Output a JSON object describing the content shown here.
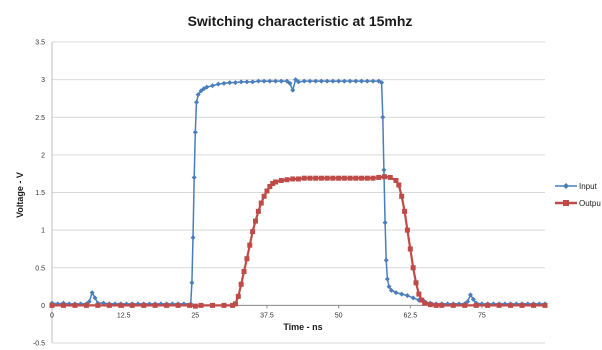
{
  "chart_data": {
    "type": "line",
    "title": "Switching characteristic at 15mhz",
    "xlabel": "Time  - ns",
    "ylabel": "Voltage - V",
    "xlim": [
      0,
      86
    ],
    "ylim": [
      -0.5,
      3.5
    ],
    "x_ticks": [
      "0",
      "12.5",
      "25",
      "37.5",
      "50",
      "62.5",
      "75"
    ],
    "x_tick_values": [
      0,
      12.5,
      25,
      37.5,
      50,
      62.5,
      75
    ],
    "y_ticks": [
      "3.5",
      "3",
      "2.5",
      "2",
      "1.5",
      "1",
      "0.5",
      "0",
      "-0.5"
    ],
    "y_tick_values": [
      3.5,
      3,
      2.5,
      2,
      1.5,
      1,
      0.5,
      0,
      -0.5
    ],
    "grid": true,
    "legend_position": "right",
    "series": [
      {
        "name": "Input",
        "color": "#4a7ebb",
        "marker": "diamond",
        "points": [
          [
            0,
            0.03
          ],
          [
            1,
            0.02
          ],
          [
            2,
            0.03
          ],
          [
            3,
            0.02
          ],
          [
            4,
            0.02
          ],
          [
            5,
            0.02
          ],
          [
            6,
            0.02
          ],
          [
            6.5,
            0.05
          ],
          [
            7,
            0.17
          ],
          [
            7.5,
            0.1
          ],
          [
            8,
            0.03
          ],
          [
            9,
            0.03
          ],
          [
            10,
            0.02
          ],
          [
            11,
            0.02
          ],
          [
            12,
            0.02
          ],
          [
            13,
            0.02
          ],
          [
            14,
            0.02
          ],
          [
            15,
            0.02
          ],
          [
            16,
            0.02
          ],
          [
            17,
            0.02
          ],
          [
            18,
            0.02
          ],
          [
            19,
            0.02
          ],
          [
            20,
            0.02
          ],
          [
            21,
            0.02
          ],
          [
            22,
            0.02
          ],
          [
            23,
            0.02
          ],
          [
            24.2,
            0.02
          ],
          [
            24.4,
            0.3
          ],
          [
            24.6,
            0.9
          ],
          [
            24.8,
            1.7
          ],
          [
            25,
            2.3
          ],
          [
            25.2,
            2.7
          ],
          [
            25.5,
            2.8
          ],
          [
            26,
            2.85
          ],
          [
            26.5,
            2.88
          ],
          [
            27,
            2.9
          ],
          [
            28,
            2.92
          ],
          [
            29,
            2.94
          ],
          [
            30,
            2.95
          ],
          [
            31,
            2.96
          ],
          [
            32,
            2.96
          ],
          [
            33,
            2.97
          ],
          [
            34,
            2.97
          ],
          [
            35,
            2.97
          ],
          [
            36,
            2.98
          ],
          [
            37,
            2.98
          ],
          [
            38,
            2.98
          ],
          [
            39,
            2.98
          ],
          [
            40,
            2.98
          ],
          [
            41,
            2.98
          ],
          [
            41.5,
            2.95
          ],
          [
            42,
            2.86
          ],
          [
            42.5,
            3.0
          ],
          [
            43,
            2.97
          ],
          [
            44,
            2.98
          ],
          [
            45,
            2.98
          ],
          [
            46,
            2.98
          ],
          [
            47,
            2.98
          ],
          [
            48,
            2.98
          ],
          [
            49,
            2.98
          ],
          [
            50,
            2.98
          ],
          [
            51,
            2.98
          ],
          [
            52,
            2.98
          ],
          [
            53,
            2.98
          ],
          [
            54,
            2.98
          ],
          [
            55,
            2.98
          ],
          [
            56,
            2.98
          ],
          [
            57,
            2.98
          ],
          [
            57.5,
            2.96
          ],
          [
            57.7,
            2.5
          ],
          [
            57.9,
            1.8
          ],
          [
            58.1,
            1.1
          ],
          [
            58.3,
            0.6
          ],
          [
            58.5,
            0.35
          ],
          [
            58.8,
            0.25
          ],
          [
            59.2,
            0.2
          ],
          [
            60,
            0.17
          ],
          [
            61,
            0.15
          ],
          [
            62,
            0.13
          ],
          [
            63,
            0.1
          ],
          [
            64,
            0.07
          ],
          [
            65,
            0.05
          ],
          [
            66,
            0.03
          ],
          [
            67,
            0.02
          ],
          [
            68,
            0.02
          ],
          [
            69,
            0.02
          ],
          [
            70,
            0.02
          ],
          [
            71,
            0.02
          ],
          [
            72,
            0.02
          ],
          [
            72.5,
            0.05
          ],
          [
            73,
            0.14
          ],
          [
            73.5,
            0.08
          ],
          [
            74,
            0.03
          ],
          [
            75,
            0.02
          ],
          [
            76,
            0.02
          ],
          [
            77,
            0.02
          ],
          [
            78,
            0.02
          ],
          [
            79,
            0.02
          ],
          [
            80,
            0.02
          ],
          [
            81,
            0.02
          ],
          [
            82,
            0.02
          ],
          [
            83,
            0.02
          ],
          [
            84,
            0.02
          ],
          [
            85,
            0.02
          ],
          [
            86,
            0.02
          ]
        ]
      },
      {
        "name": "Outpu",
        "color": "#be4b48",
        "marker": "square",
        "points": [
          [
            0,
            0.0
          ],
          [
            2,
            0.0
          ],
          [
            4,
            0.0
          ],
          [
            6,
            0.0
          ],
          [
            8,
            0.0
          ],
          [
            10,
            0.0
          ],
          [
            12,
            0.0
          ],
          [
            14,
            0.0
          ],
          [
            16,
            0.0
          ],
          [
            18,
            0.0
          ],
          [
            20,
            0.0
          ],
          [
            22,
            0.0
          ],
          [
            24,
            0.0
          ],
          [
            25,
            -0.01
          ],
          [
            26,
            0.0
          ],
          [
            28,
            0.0
          ],
          [
            30,
            0.0
          ],
          [
            31.5,
            0.0
          ],
          [
            32,
            0.02
          ],
          [
            32.5,
            0.12
          ],
          [
            33,
            0.28
          ],
          [
            33.5,
            0.45
          ],
          [
            34,
            0.62
          ],
          [
            34.5,
            0.8
          ],
          [
            35,
            0.98
          ],
          [
            35.5,
            1.12
          ],
          [
            36,
            1.25
          ],
          [
            36.5,
            1.36
          ],
          [
            37,
            1.45
          ],
          [
            37.5,
            1.52
          ],
          [
            38,
            1.58
          ],
          [
            38.5,
            1.62
          ],
          [
            39,
            1.64
          ],
          [
            40,
            1.66
          ],
          [
            41,
            1.67
          ],
          [
            42,
            1.68
          ],
          [
            43,
            1.68
          ],
          [
            44,
            1.69
          ],
          [
            45,
            1.69
          ],
          [
            46,
            1.69
          ],
          [
            47,
            1.69
          ],
          [
            48,
            1.69
          ],
          [
            49,
            1.69
          ],
          [
            50,
            1.69
          ],
          [
            51,
            1.69
          ],
          [
            52,
            1.69
          ],
          [
            53,
            1.69
          ],
          [
            54,
            1.69
          ],
          [
            55,
            1.69
          ],
          [
            56,
            1.69
          ],
          [
            57,
            1.7
          ],
          [
            58,
            1.71
          ],
          [
            59,
            1.7
          ],
          [
            60,
            1.66
          ],
          [
            60.5,
            1.6
          ],
          [
            61,
            1.45
          ],
          [
            61.5,
            1.25
          ],
          [
            62,
            1.0
          ],
          [
            62.5,
            0.75
          ],
          [
            63,
            0.5
          ],
          [
            63.5,
            0.3
          ],
          [
            64,
            0.15
          ],
          [
            64.5,
            0.07
          ],
          [
            65,
            0.03
          ],
          [
            66,
            0.01
          ],
          [
            67,
            0.0
          ],
          [
            68,
            0.0
          ],
          [
            70,
            0.0
          ],
          [
            72,
            0.0
          ],
          [
            74,
            0.0
          ],
          [
            76,
            0.0
          ],
          [
            78,
            0.0
          ],
          [
            80,
            0.0
          ],
          [
            82,
            0.0
          ],
          [
            84,
            0.0
          ],
          [
            86,
            0.0
          ]
        ]
      }
    ]
  }
}
